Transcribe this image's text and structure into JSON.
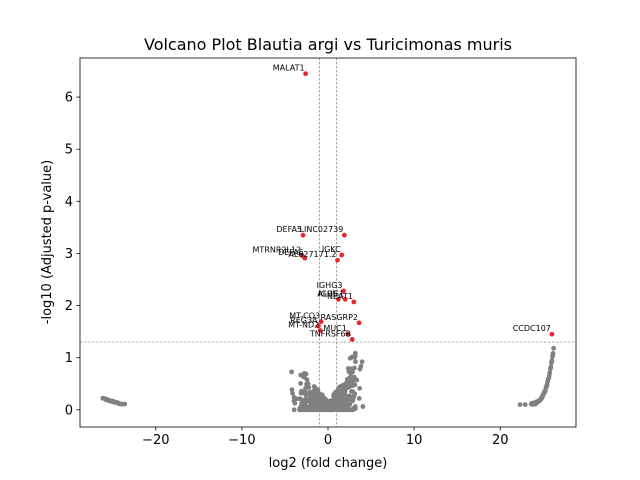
{
  "chart_data": {
    "type": "scatter",
    "title": "Volcano Plot Blautia argi vs Turicimonas muris",
    "xlabel": "log2 (fold change)",
    "ylabel": "-log10 (Adjusted p-value)",
    "xlim": [
      -28.8,
      28.8
    ],
    "ylim": [
      -0.33,
      6.75
    ],
    "xticks": [
      -20,
      -10,
      0,
      10,
      20
    ],
    "yticks": [
      0,
      1,
      2,
      3,
      4,
      5,
      6
    ],
    "grid": false,
    "thresholds": {
      "x": [
        -1,
        1
      ],
      "y": 1.3
    },
    "colors": {
      "significant": "#e8272a",
      "nonsignificant": "#808080",
      "threshold_line": "#808080"
    },
    "significant_points": [
      {
        "label": "MALAT1",
        "x": -2.6,
        "y": 6.45
      },
      {
        "label": "DEFA5",
        "x": -2.9,
        "y": 3.35
      },
      {
        "label": "LINC02739",
        "x": 1.9,
        "y": 3.35
      },
      {
        "label": "MTRNR2L12",
        "x": -3.0,
        "y": 2.96
      },
      {
        "label": "DEFA6",
        "x": -2.7,
        "y": 2.91
      },
      {
        "label": "AL627171.2",
        "x": 1.1,
        "y": 2.87
      },
      {
        "label": "IGKC",
        "x": 1.6,
        "y": 2.97
      },
      {
        "label": "IGHG3",
        "x": 1.8,
        "y": 2.28
      },
      {
        "label": "IGHG1",
        "x": 2.0,
        "y": 2.12
      },
      {
        "label": "AL05",
        "x": 1.2,
        "y": 2.12
      },
      {
        "label": "NEAT1",
        "x": 3.0,
        "y": 2.07
      },
      {
        "label": "MT-CO3",
        "x": -0.8,
        "y": 1.69
      },
      {
        "label": "RASGRP2",
        "x": 3.6,
        "y": 1.67
      },
      {
        "label": "REG3A",
        "x": -1.1,
        "y": 1.61
      },
      {
        "label": "MT-ND2",
        "x": -0.9,
        "y": 1.52
      },
      {
        "label": "MUC1",
        "x": 2.3,
        "y": 1.45
      },
      {
        "label": "TNFRSF6B",
        "x": 2.8,
        "y": 1.35
      },
      {
        "label": "CCDC107",
        "x": 26.0,
        "y": 1.45
      }
    ]
  }
}
